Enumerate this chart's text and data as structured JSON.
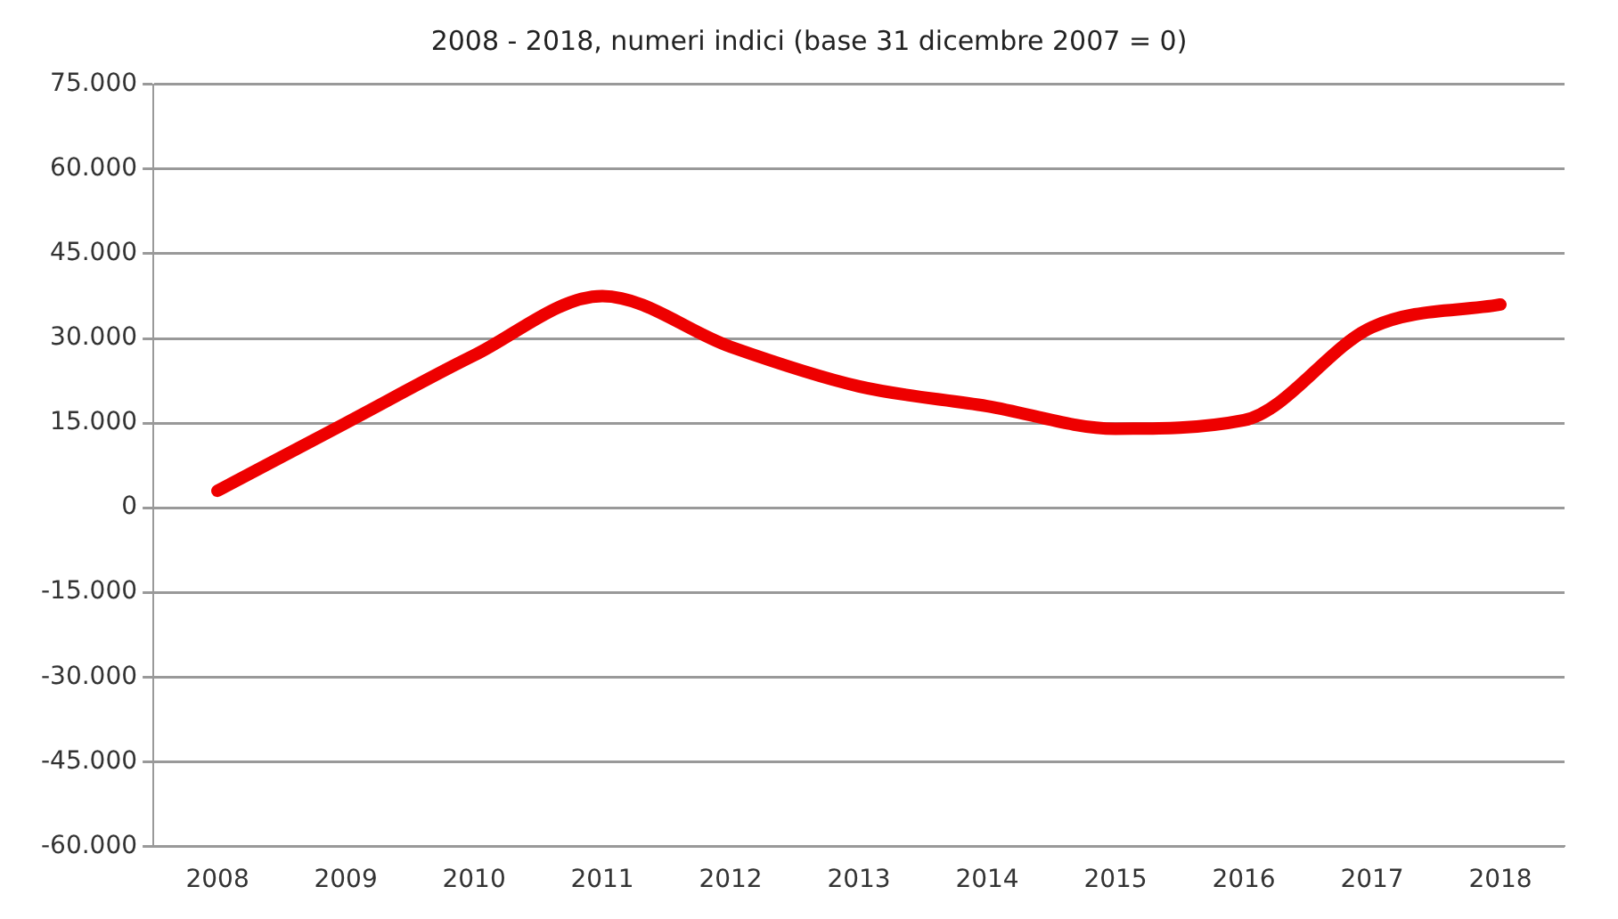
{
  "chart_data": {
    "type": "line",
    "title": "2008 - 2018, numeri indici (base 31 dicembre 2007 = 0)",
    "categories": [
      "2008",
      "2009",
      "2010",
      "2011",
      "2012",
      "2013",
      "2014",
      "2015",
      "2016",
      "2017",
      "2018"
    ],
    "series": [
      {
        "color": "#ee0000",
        "values": [
          3000,
          15000,
          27000,
          37500,
          28500,
          21500,
          18000,
          14000,
          15500,
          32000,
          36000
        ]
      }
    ],
    "ylim": [
      -60000,
      75000
    ],
    "yticks": [
      {
        "value": -60000,
        "label": "-60.000"
      },
      {
        "value": -45000,
        "label": "-45.000"
      },
      {
        "value": -30000,
        "label": "-30.000"
      },
      {
        "value": -15000,
        "label": "-15.000"
      },
      {
        "value": 0,
        "label": "0"
      },
      {
        "value": 15000,
        "label": "15.000"
      },
      {
        "value": 30000,
        "label": "30.000"
      },
      {
        "value": 45000,
        "label": "45.000"
      },
      {
        "value": 60000,
        "label": "60.000"
      },
      {
        "value": 75000,
        "label": "75.000"
      }
    ],
    "grid": "y",
    "legend": false,
    "marker": "none",
    "line_style": "solid"
  }
}
